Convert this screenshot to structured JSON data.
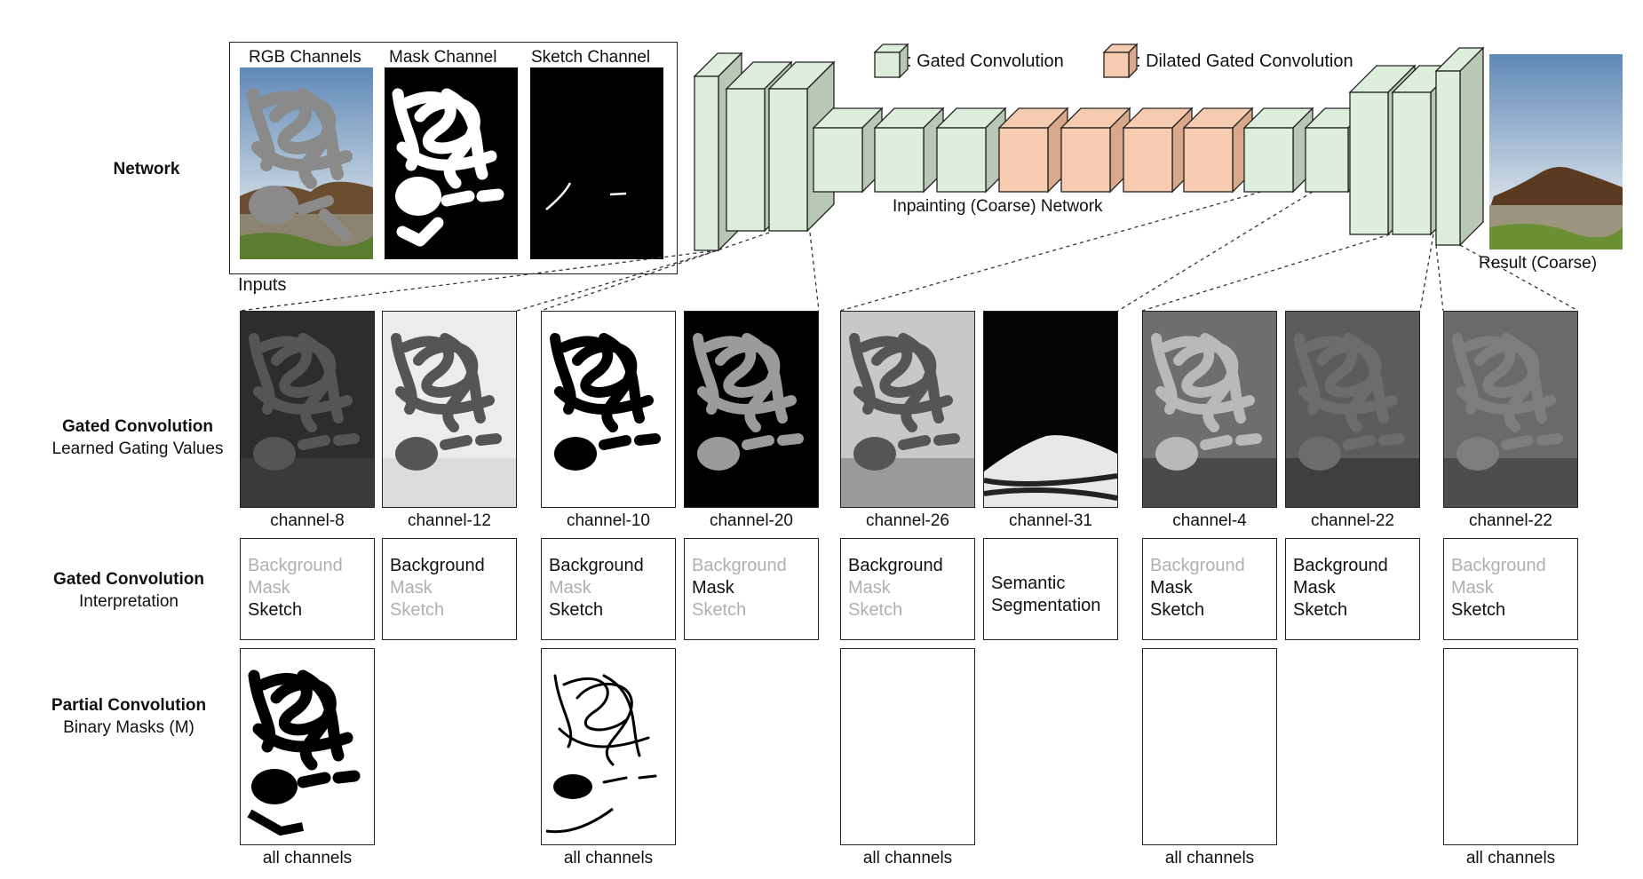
{
  "row_labels": {
    "network": "Network",
    "gated_values_title": "Gated Convolution",
    "gated_values_sub": "Learned Gating Values",
    "gated_interp_title": "Gated Convolution",
    "gated_interp_sub": "Interpretation",
    "partial_title": "Partial Convolution",
    "partial_sub": "Binary Masks (M)"
  },
  "inputs": {
    "label": "Inputs",
    "rgb": "RGB Channels",
    "mask": "Mask Channel",
    "sketch": "Sketch Channel"
  },
  "network": {
    "name": "Inpainting (Coarse) Network",
    "result": "Result (Coarse)",
    "legend_gated": ": Gated Convolution",
    "legend_dilated": ": Dilated Gated Convolution",
    "colors": {
      "gated": "#ddeedd",
      "gated_side": "#b8c8b4",
      "dilated": "#f7cbb0",
      "dilated_side": "#d9a88b"
    }
  },
  "channels": [
    {
      "caption": "channel-8",
      "terms": [
        {
          "text": "Background",
          "active": false
        },
        {
          "text": "Mask",
          "active": false
        },
        {
          "text": "Sketch",
          "active": true
        }
      ]
    },
    {
      "caption": "channel-12",
      "terms": [
        {
          "text": "Background",
          "active": true
        },
        {
          "text": "Mask",
          "active": false
        },
        {
          "text": "Sketch",
          "active": false
        }
      ]
    },
    {
      "caption": "channel-10",
      "terms": [
        {
          "text": "Background",
          "active": true
        },
        {
          "text": "Mask",
          "active": false
        },
        {
          "text": "Sketch",
          "active": true
        }
      ]
    },
    {
      "caption": "channel-20",
      "terms": [
        {
          "text": "Background",
          "active": false
        },
        {
          "text": "Mask",
          "active": true
        },
        {
          "text": "Sketch",
          "active": false
        }
      ]
    },
    {
      "caption": "channel-26",
      "terms": [
        {
          "text": "Background",
          "active": true
        },
        {
          "text": "Mask",
          "active": false
        },
        {
          "text": "Sketch",
          "active": false
        }
      ]
    },
    {
      "caption": "channel-31",
      "terms": [
        {
          "text": "Semantic",
          "active": true
        },
        {
          "text": "Segmentation",
          "active": true
        }
      ]
    },
    {
      "caption": "channel-4",
      "terms": [
        {
          "text": "Background",
          "active": false
        },
        {
          "text": "Mask",
          "active": true
        },
        {
          "text": "Sketch",
          "active": true
        }
      ]
    },
    {
      "caption": "channel-22",
      "terms": [
        {
          "text": "Background",
          "active": true
        },
        {
          "text": "Mask",
          "active": true
        },
        {
          "text": "Sketch",
          "active": true
        }
      ]
    },
    {
      "caption": "channel-22",
      "terms": [
        {
          "text": "Background",
          "active": false
        },
        {
          "text": "Mask",
          "active": false
        },
        {
          "text": "Sketch",
          "active": true
        }
      ]
    }
  ],
  "partial": [
    {
      "caption": "all channels"
    },
    {
      "caption": "all channels"
    },
    {
      "caption": "all channels"
    },
    {
      "caption": "all channels"
    },
    {
      "caption": "all channels"
    }
  ]
}
